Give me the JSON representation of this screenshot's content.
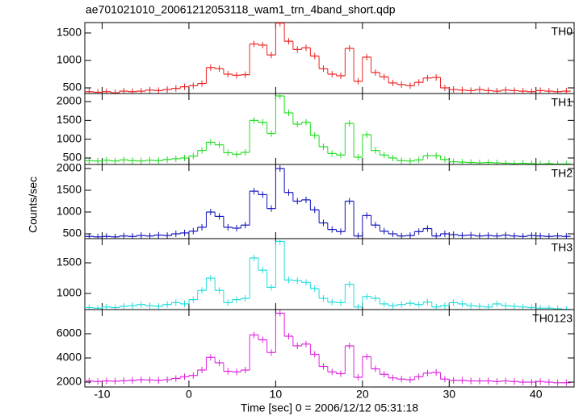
{
  "title": "ae701021010_20061212053118_wam1_trn_4band_short.qdp",
  "ylabel": "Counts/sec",
  "xlabel": "Time [sec] 0 = 2006/12/12 05:31:18",
  "xlim": [
    -12,
    44.4
  ],
  "xticks": [
    -10,
    0,
    10,
    20,
    30,
    40
  ],
  "bins": [
    -12,
    -11,
    -10,
    -9,
    -8,
    -7,
    -6,
    -5,
    -4,
    -3,
    -2,
    -1,
    0,
    1,
    2,
    3,
    4,
    5,
    6,
    7,
    8,
    9,
    10,
    11,
    12,
    13,
    14,
    15,
    16,
    17,
    18,
    19,
    20,
    21,
    22,
    23,
    24,
    25,
    26,
    27,
    28,
    29,
    30,
    31,
    32,
    33,
    34,
    35,
    36,
    37,
    38,
    39,
    40,
    41,
    42,
    43,
    44
  ],
  "chart_data": [
    {
      "type": "step",
      "name": "TH0",
      "color": "#ee2222",
      "ylim": [
        397,
        1690
      ],
      "yticks": [
        500,
        1000,
        1500
      ],
      "values": [
        430,
        420,
        430,
        410,
        440,
        430,
        440,
        460,
        450,
        470,
        490,
        520,
        540,
        580,
        870,
        850,
        750,
        730,
        740,
        1300,
        1280,
        1100,
        1680,
        1350,
        1200,
        1230,
        1080,
        850,
        750,
        720,
        1220,
        620,
        1060,
        780,
        700,
        590,
        560,
        540,
        600,
        680,
        690,
        500,
        470,
        460,
        450,
        470,
        450,
        440,
        460,
        450,
        440,
        430,
        450,
        440,
        430,
        440
      ]
    },
    {
      "type": "step",
      "name": "TH1",
      "color": "#22dd22",
      "ylim": [
        328,
        2215
      ],
      "yticks": [
        500,
        1000,
        1500,
        2000
      ],
      "values": [
        430,
        420,
        440,
        420,
        450,
        430,
        420,
        440,
        430,
        460,
        480,
        500,
        550,
        700,
        920,
        850,
        640,
        600,
        650,
        1500,
        1450,
        1150,
        2150,
        1700,
        1400,
        1450,
        1100,
        800,
        620,
        580,
        1420,
        520,
        1120,
        700,
        580,
        500,
        430,
        420,
        450,
        560,
        560,
        460,
        400,
        390,
        380,
        370,
        380,
        370,
        360,
        350,
        360,
        350,
        340,
        350,
        340,
        340
      ]
    },
    {
      "type": "step",
      "name": "TH2",
      "color": "#1111bb",
      "ylim": [
        389,
        2093
      ],
      "yticks": [
        500,
        1000,
        1500,
        2000
      ],
      "values": [
        440,
        430,
        440,
        430,
        450,
        440,
        460,
        450,
        470,
        460,
        500,
        520,
        560,
        650,
        1000,
        900,
        650,
        630,
        700,
        1480,
        1400,
        1080,
        2000,
        1450,
        1250,
        1280,
        1050,
        750,
        600,
        550,
        1250,
        450,
        920,
        700,
        560,
        500,
        450,
        460,
        550,
        620,
        450,
        500,
        480,
        460,
        470,
        450,
        460,
        450,
        470,
        450,
        440,
        460,
        450,
        440,
        450,
        440
      ]
    },
    {
      "type": "step",
      "name": "TH3",
      "color": "#22dddd",
      "ylim": [
        737,
        1895
      ],
      "yticks": [
        1000,
        1500
      ],
      "values": [
        770,
        760,
        780,
        770,
        790,
        800,
        820,
        800,
        790,
        820,
        850,
        830,
        900,
        1050,
        1250,
        1050,
        850,
        900,
        920,
        1580,
        1380,
        1100,
        1850,
        1220,
        1210,
        1180,
        1080,
        920,
        860,
        850,
        1150,
        780,
        950,
        920,
        830,
        800,
        820,
        840,
        820,
        860,
        780,
        800,
        850,
        830,
        800,
        790,
        780,
        830,
        800,
        790,
        780,
        770,
        760,
        760,
        750,
        740
      ]
    },
    {
      "type": "step",
      "name": "TH0123",
      "color": "#dd22dd",
      "ylim": [
        1600,
        8000
      ],
      "yticks": [
        2000,
        4000,
        6000
      ],
      "values": [
        2100,
        2050,
        2100,
        2080,
        2120,
        2150,
        2200,
        2180,
        2150,
        2200,
        2300,
        2450,
        2550,
        3000,
        4050,
        3600,
        2900,
        2850,
        3000,
        5900,
        5500,
        4450,
        7700,
        5800,
        5000,
        5150,
        4300,
        3300,
        2850,
        2700,
        5000,
        2400,
        4100,
        3100,
        2650,
        2350,
        2250,
        2200,
        2450,
        2750,
        2800,
        2250,
        2150,
        2150,
        2100,
        2100,
        2100,
        2050,
        2100,
        2050,
        2000,
        2000,
        2050,
        2000,
        1950,
        1950
      ]
    }
  ]
}
